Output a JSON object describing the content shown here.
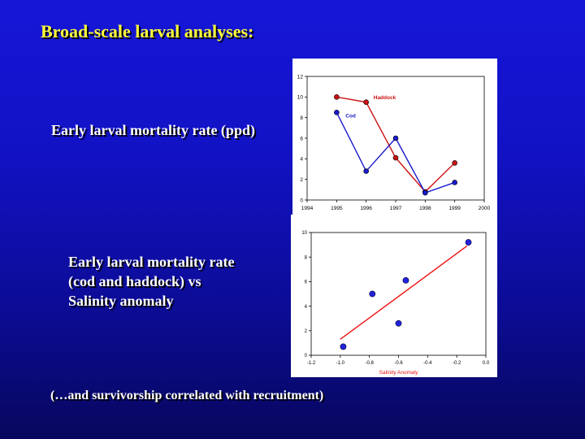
{
  "slide": {
    "title": "Broad-scale larval analyses:",
    "label1": "Early larval mortality rate (ppd)",
    "label2_lines": [
      "Early larval mortality rate",
      "(cod and haddock) vs",
      "Salinity anomaly"
    ],
    "footer": "(…and survivorship correlated with recruitment)"
  },
  "colors": {
    "cod": "#1a1acc",
    "haddock": "#cc1111",
    "fit_line": "#ee1111",
    "point_fill_blue": "#2222dd"
  },
  "chart_data": [
    {
      "type": "line",
      "xlim": [
        1994,
        2000
      ],
      "ylim": [
        0,
        12
      ],
      "xticks": [
        "1994",
        "1995",
        "1996",
        "1997",
        "1998",
        "1999",
        "2000"
      ],
      "yticks": [
        "0",
        "2",
        "4",
        "6",
        "8",
        "10",
        "12"
      ],
      "grid": false,
      "series": [
        {
          "name": "Haddock",
          "x": [
            1995,
            1996,
            1997,
            1998,
            1999
          ],
          "values": [
            10.0,
            9.5,
            4.1,
            0.8,
            3.6
          ]
        },
        {
          "name": "Cod",
          "x": [
            1995,
            1996,
            1997,
            1998,
            1999
          ],
          "values": [
            8.5,
            2.8,
            6.0,
            0.7,
            1.7
          ]
        }
      ]
    },
    {
      "type": "scatter",
      "xlabel": "Salinity Anomaly",
      "xlim": [
        -1.2,
        0.0
      ],
      "ylim": [
        0,
        10
      ],
      "xticks": [
        "-1.2",
        "-1.0",
        "-0.8",
        "-0.6",
        "-0.4",
        "-0.2",
        "0.0"
      ],
      "yticks": [
        "0",
        "2",
        "4",
        "6",
        "8",
        "10"
      ],
      "grid": false,
      "points": {
        "x": [
          -0.98,
          -0.78,
          -0.6,
          -0.55,
          -0.12
        ],
        "y": [
          0.7,
          5.0,
          2.6,
          6.1,
          9.2
        ]
      },
      "fit_line": {
        "x": [
          -1.0,
          -0.13
        ],
        "y": [
          1.3,
          8.9
        ]
      }
    }
  ]
}
